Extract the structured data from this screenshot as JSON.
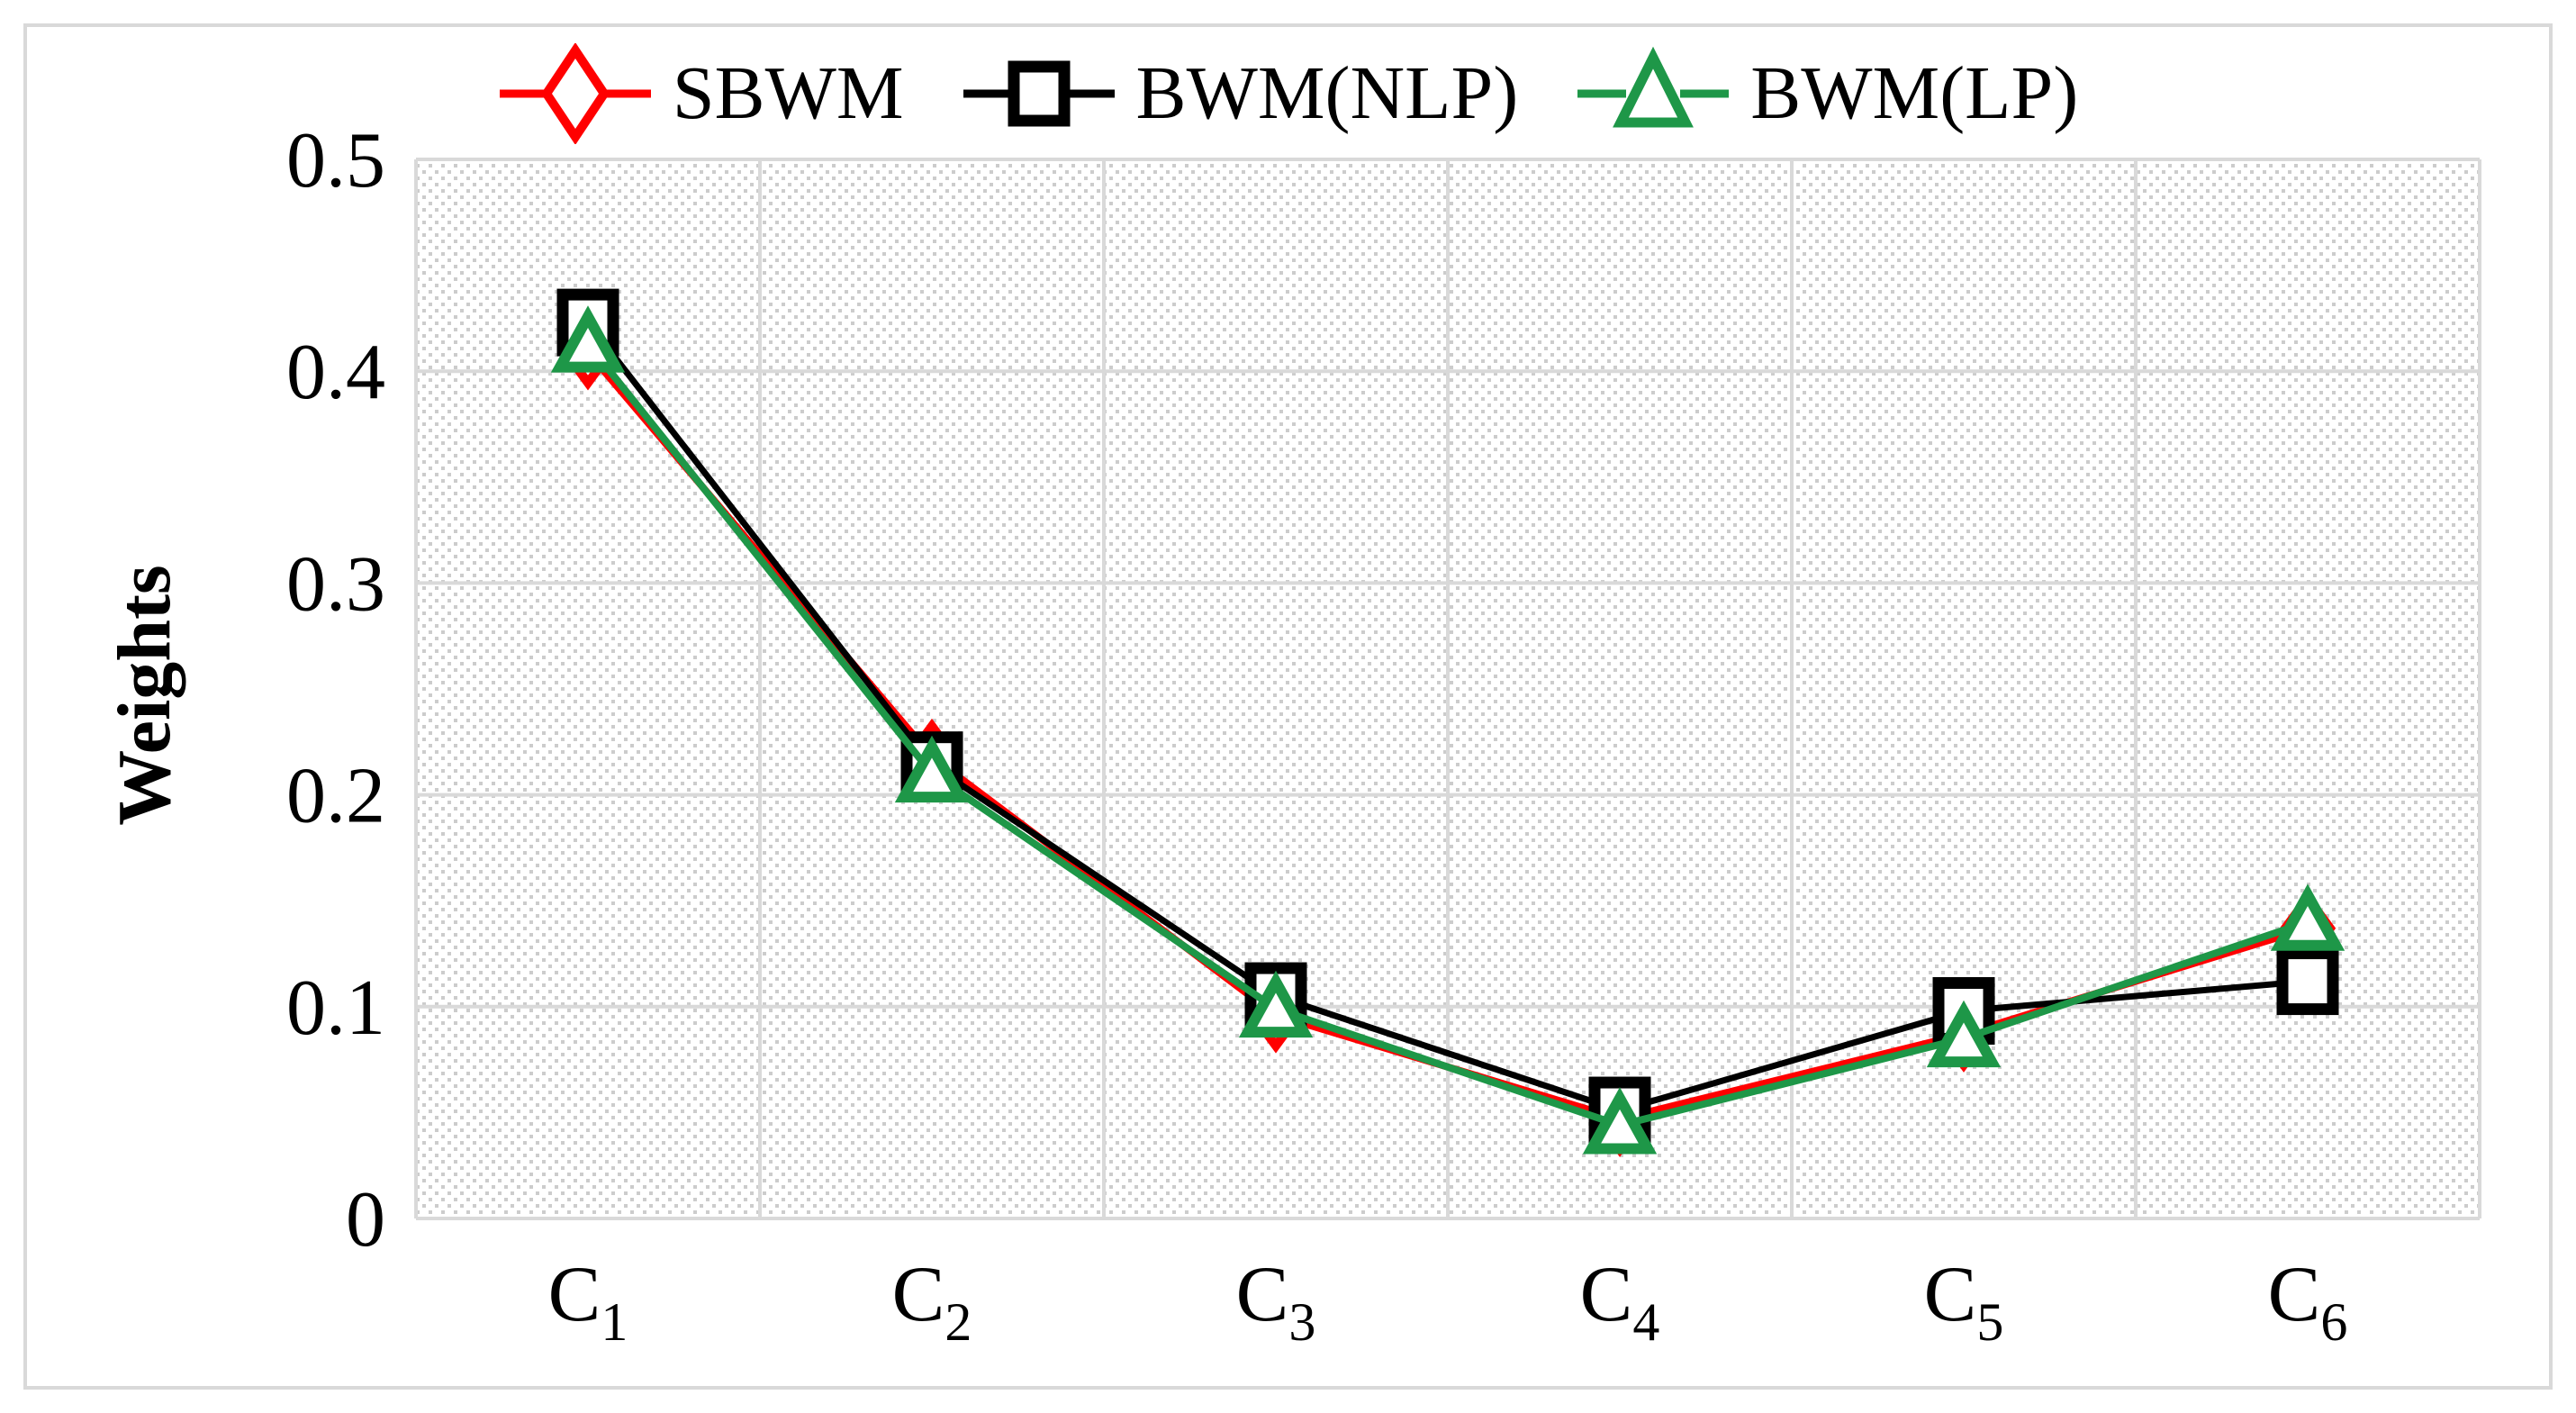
{
  "chart_data": {
    "type": "line",
    "title": "",
    "xlabel": "",
    "ylabel": "Weights",
    "ylim": [
      0,
      0.5
    ],
    "ytick_labels": [
      "0.5",
      "0.4",
      "0.3",
      "0.2",
      "0.1",
      "0"
    ],
    "ytick_values": [
      0.5,
      0.4,
      0.3,
      0.2,
      0.1,
      0
    ],
    "categories": [
      {
        "base": "C",
        "sub": "1"
      },
      {
        "base": "C",
        "sub": "2"
      },
      {
        "base": "C",
        "sub": "3"
      },
      {
        "base": "C",
        "sub": "4"
      },
      {
        "base": "C",
        "sub": "5"
      },
      {
        "base": "C",
        "sub": "6"
      }
    ],
    "series": [
      {
        "name": "SBWM",
        "color": "#FF0000",
        "marker": "diamond",
        "line_width": 8,
        "values": [
          0.409,
          0.218,
          0.096,
          0.047,
          0.087,
          0.137
        ]
      },
      {
        "name": "BWM(NLP)",
        "color": "#000000",
        "marker": "square",
        "line_width": 7,
        "values": [
          0.423,
          0.214,
          0.105,
          0.051,
          0.098,
          0.112
        ]
      },
      {
        "name": "BWM(LP)",
        "color": "#1E9748",
        "marker": "triangle",
        "line_width": 8,
        "values": [
          0.413,
          0.21,
          0.099,
          0.044,
          0.085,
          0.14
        ]
      }
    ],
    "legend_position": "top",
    "grid": true,
    "plot_background": "diagonal-dot-hatch",
    "gridline_color": "#D9D9D9",
    "hatch_dot_color": "#CCCCCC",
    "frame_color": "#D9D9D9"
  }
}
